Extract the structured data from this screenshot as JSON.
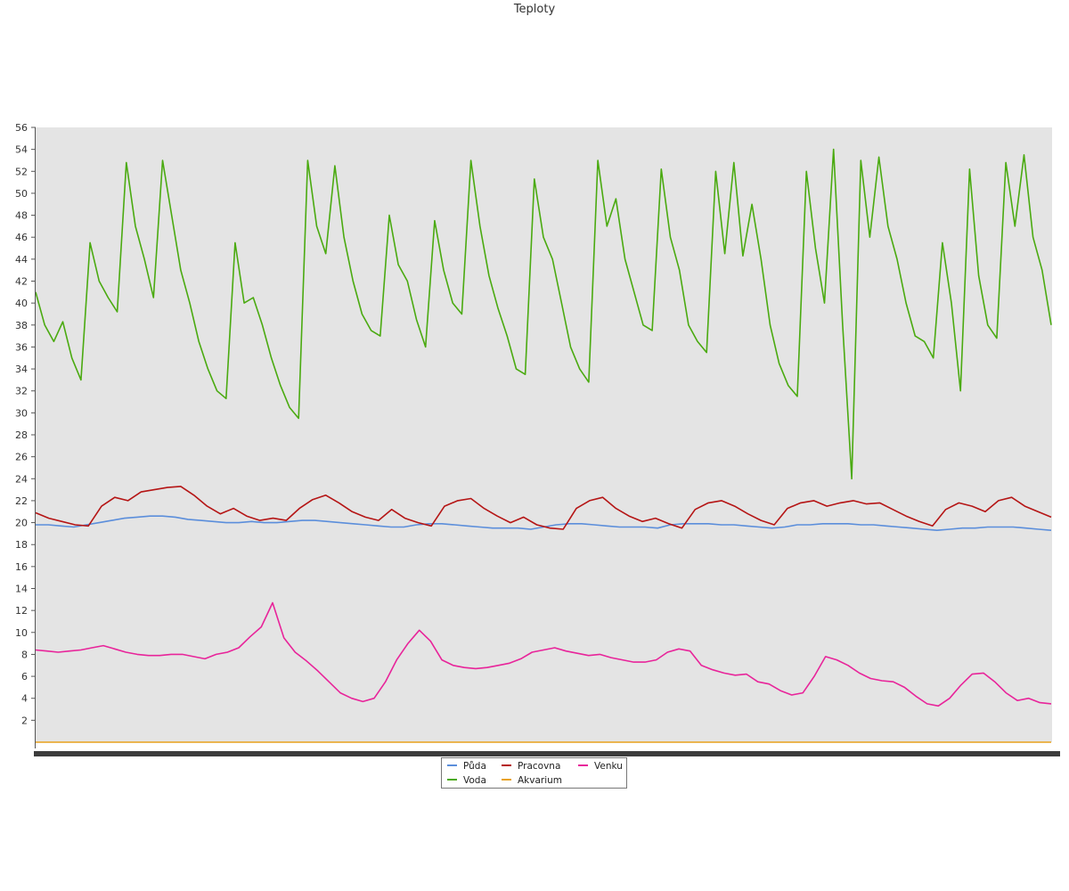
{
  "chart_data": {
    "type": "line",
    "title": "Teploty",
    "xlabel": "",
    "ylabel": "",
    "ylim": [
      0,
      56
    ],
    "yticks": [
      2,
      4,
      6,
      8,
      10,
      12,
      14,
      16,
      18,
      20,
      22,
      24,
      26,
      28,
      30,
      32,
      34,
      36,
      38,
      40,
      42,
      44,
      46,
      48,
      50,
      52,
      54,
      56
    ],
    "grid": false,
    "legend_position": "bottom-center",
    "series": [
      {
        "name": "Půda",
        "color": "#5b8edb",
        "values": [
          19.8,
          19.8,
          19.7,
          19.6,
          19.8,
          20.0,
          20.2,
          20.4,
          20.5,
          20.6,
          20.6,
          20.5,
          20.3,
          20.2,
          20.1,
          20.0,
          20.0,
          20.1,
          20.0,
          20.0,
          20.1,
          20.2,
          20.2,
          20.1,
          20.0,
          19.9,
          19.8,
          19.7,
          19.6,
          19.6,
          19.8,
          19.9,
          19.9,
          19.8,
          19.7,
          19.6,
          19.5,
          19.5,
          19.5,
          19.4,
          19.6,
          19.8,
          19.9,
          19.9,
          19.8,
          19.7,
          19.6,
          19.6,
          19.6,
          19.5,
          19.8,
          19.9,
          19.9,
          19.9,
          19.8,
          19.8,
          19.7,
          19.6,
          19.5,
          19.6,
          19.8,
          19.8,
          19.9,
          19.9,
          19.9,
          19.8,
          19.8,
          19.7,
          19.6,
          19.5,
          19.4,
          19.3,
          19.4,
          19.5,
          19.5,
          19.6,
          19.6,
          19.6,
          19.5,
          19.4,
          19.3
        ]
      },
      {
        "name": "Voda",
        "color": "#4aaa10",
        "values": [
          41.0,
          38.0,
          36.5,
          38.3,
          35.0,
          33.0,
          45.5,
          42.0,
          40.5,
          39.2,
          52.8,
          47.0,
          44.0,
          40.5,
          53.0,
          48.0,
          43.0,
          40.0,
          36.5,
          34.0,
          32.0,
          31.3,
          45.5,
          40.0,
          40.5,
          38.0,
          35.0,
          32.5,
          30.5,
          29.5,
          53.0,
          47.0,
          44.5,
          52.5,
          46.0,
          42.0,
          39.0,
          37.5,
          37.0,
          48.0,
          43.5,
          42.0,
          38.5,
          36.0,
          47.5,
          43.0,
          40.0,
          39.0,
          53.0,
          47.0,
          42.5,
          39.5,
          37.0,
          34.0,
          33.5,
          51.3,
          46.0,
          44.0,
          40.0,
          36.0,
          34.0,
          32.8,
          53.0,
          47.0,
          49.5,
          44.0,
          41.0,
          38.0,
          37.5,
          52.2,
          46.0,
          43.0,
          38.0,
          36.5,
          35.5,
          52.0,
          44.5,
          52.8,
          44.3,
          49.0,
          44.0,
          38.0,
          34.5,
          32.5,
          31.5,
          52.0,
          45.0,
          40.0,
          54.0,
          38.0,
          24.0,
          53.0,
          46.0,
          53.3,
          47.0,
          44.0,
          40.0,
          37.0,
          36.5,
          35.0,
          45.5,
          40.0,
          32.0,
          52.2,
          42.5,
          38.0,
          36.8,
          52.8,
          47.0,
          53.5,
          46.0,
          43.0,
          38.0
        ]
      },
      {
        "name": "Pracovna",
        "color": "#b51515",
        "values": [
          20.9,
          20.4,
          20.1,
          19.8,
          19.7,
          21.5,
          22.3,
          22.0,
          22.8,
          23.0,
          23.2,
          23.3,
          22.5,
          21.5,
          20.8,
          21.3,
          20.6,
          20.2,
          20.4,
          20.2,
          21.3,
          22.1,
          22.5,
          21.8,
          21.0,
          20.5,
          20.2,
          21.2,
          20.4,
          20.0,
          19.7,
          21.5,
          22.0,
          22.2,
          21.3,
          20.6,
          20.0,
          20.5,
          19.8,
          19.5,
          19.4,
          21.3,
          22.0,
          22.3,
          21.3,
          20.6,
          20.1,
          20.4,
          19.9,
          19.5,
          21.2,
          21.8,
          22.0,
          21.5,
          20.8,
          20.2,
          19.8,
          21.3,
          21.8,
          22.0,
          21.5,
          21.8,
          22.0,
          21.7,
          21.8,
          21.2,
          20.6,
          20.1,
          19.7,
          21.2,
          21.8,
          21.5,
          21.0,
          22.0,
          22.3,
          21.5,
          21.0,
          20.5
        ]
      },
      {
        "name": "Akvarium",
        "color": "#e8a21c",
        "values": [
          0,
          0,
          0,
          0,
          0,
          0,
          0,
          0,
          0,
          0,
          0,
          0,
          0,
          0,
          0,
          0,
          0,
          0,
          0,
          0,
          0,
          0,
          0,
          0,
          0,
          0,
          0,
          0,
          0,
          0,
          0,
          0,
          0,
          0,
          0,
          0,
          0,
          0,
          0,
          0,
          0,
          0,
          0,
          0,
          0,
          0,
          0,
          0,
          0,
          0,
          0,
          0,
          0,
          0,
          0,
          0,
          0,
          0,
          0,
          0,
          0,
          0,
          0,
          0,
          0,
          0,
          0,
          0,
          0,
          0,
          0,
          0,
          0,
          0,
          0,
          0,
          0,
          0,
          0,
          0,
          0
        ]
      },
      {
        "name": "Venku",
        "color": "#e8249a",
        "values": [
          8.4,
          8.3,
          8.2,
          8.3,
          8.4,
          8.6,
          8.8,
          8.5,
          8.2,
          8.0,
          7.9,
          7.9,
          8.0,
          8.0,
          7.8,
          7.6,
          8.0,
          8.2,
          8.6,
          9.6,
          10.5,
          12.7,
          9.5,
          8.2,
          7.4,
          6.5,
          5.5,
          4.5,
          4.0,
          3.7,
          4.0,
          5.5,
          7.5,
          9.0,
          10.2,
          9.2,
          7.5,
          7.0,
          6.8,
          6.7,
          6.8,
          7.0,
          7.2,
          7.6,
          8.2,
          8.4,
          8.6,
          8.3,
          8.1,
          7.9,
          8.0,
          7.7,
          7.5,
          7.3,
          7.3,
          7.5,
          8.2,
          8.5,
          8.3,
          7.0,
          6.6,
          6.3,
          6.1,
          6.2,
          5.5,
          5.3,
          4.7,
          4.3,
          4.5,
          6.0,
          7.8,
          7.5,
          7.0,
          6.3,
          5.8,
          5.6,
          5.5,
          5.0,
          4.2,
          3.5,
          3.3,
          4.0,
          5.2,
          6.2,
          6.3,
          5.5,
          4.5,
          3.8,
          4.0,
          3.6,
          3.5
        ]
      }
    ]
  }
}
